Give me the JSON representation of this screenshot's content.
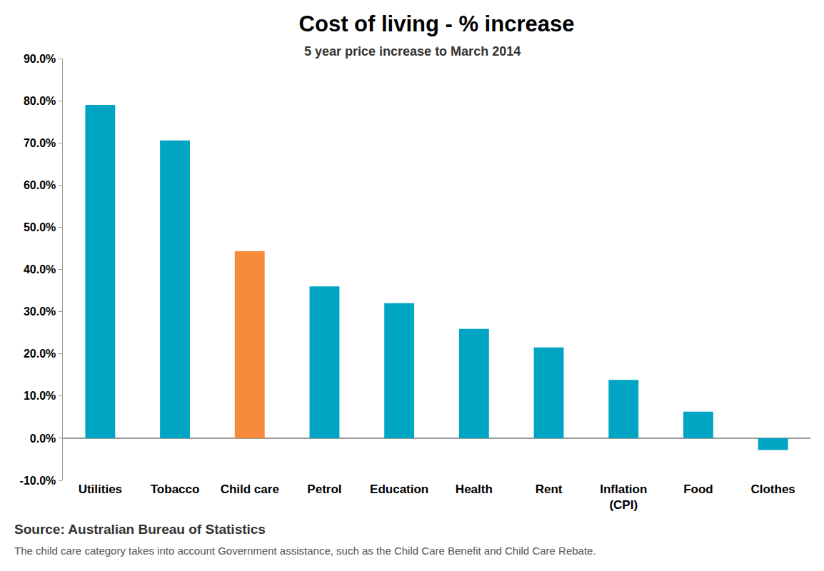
{
  "chart_data": {
    "type": "bar",
    "title": "Cost of living - % increase",
    "subtitle": "5 year price increase to March 2014",
    "categories": [
      "Utilities",
      "Tobacco",
      "Child care",
      "Petrol",
      "Education",
      "Health",
      "Rent",
      "Inflation (CPI)",
      "Food",
      "Clothes"
    ],
    "values": [
      79.0,
      70.6,
      44.3,
      36.0,
      32.0,
      25.9,
      21.5,
      13.8,
      6.3,
      -2.8
    ],
    "colors": [
      "#00a5c3",
      "#00a5c3",
      "#f68b39",
      "#00a5c3",
      "#00a5c3",
      "#00a5c3",
      "#00a5c3",
      "#00a5c3",
      "#00a5c3",
      "#00a5c3"
    ],
    "ylim": [
      -10,
      90
    ],
    "yticks": [
      {
        "value": -10,
        "label": "-10.0%"
      },
      {
        "value": 0,
        "label": "0.0%"
      },
      {
        "value": 10,
        "label": "10.0%"
      },
      {
        "value": 20,
        "label": "20.0%"
      },
      {
        "value": 30,
        "label": "30.0%"
      },
      {
        "value": 40,
        "label": "40.0%"
      },
      {
        "value": 50,
        "label": "50.0%"
      },
      {
        "value": 60,
        "label": "60.0%"
      },
      {
        "value": 70,
        "label": "70.0%"
      },
      {
        "value": 80,
        "label": "80.0%"
      },
      {
        "value": 90,
        "label": "90.0%"
      }
    ],
    "grid": false,
    "source": "Source: Australian Bureau of Statistics",
    "note": "The child care category takes into account Government assistance, such as the Child Care Benefit and Child Care Rebate."
  }
}
